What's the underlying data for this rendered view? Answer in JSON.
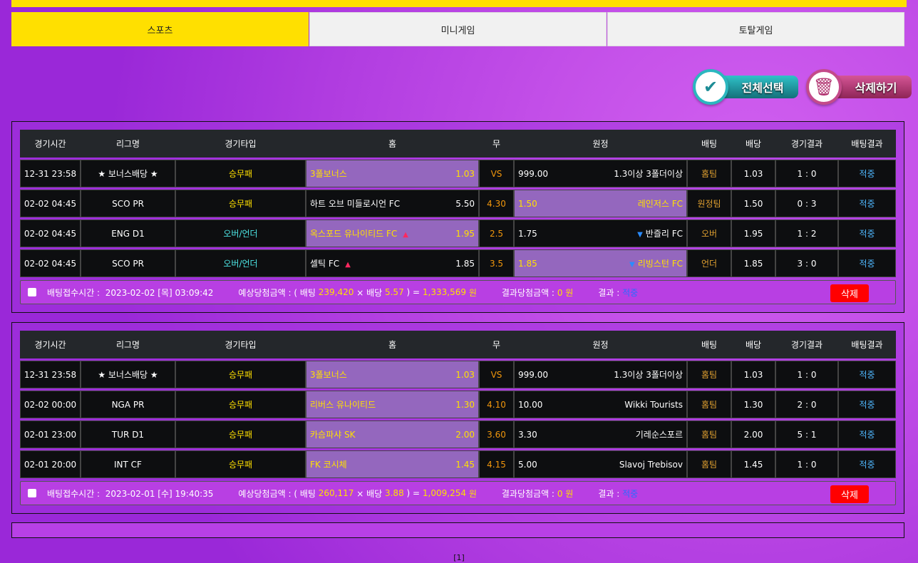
{
  "tabs": [
    {
      "label": "스포츠",
      "active": true
    },
    {
      "label": "미니게임",
      "active": false
    },
    {
      "label": "토탈게임",
      "active": false
    }
  ],
  "actions": {
    "select_all": "전체선택",
    "delete": "삭제하기"
  },
  "headers": [
    "경기시간",
    "리그명",
    "경기타입",
    "홈",
    "무",
    "원정",
    "배팅",
    "배당",
    "경기결과",
    "배팅결과"
  ],
  "footer_labels": {
    "time": "배팅접수시간 :",
    "expected": "예상당첨금액 : ( 배팅",
    "times": "× 배당",
    "eq": ") =",
    "won": "원",
    "result_amount": "결과당첨금액 :",
    "result": "결과 :",
    "delete": "삭제"
  },
  "bets": [
    {
      "rows": [
        {
          "time": "12-31 23:58",
          "league": "★ 보너스배당 ★",
          "type": "승무패",
          "home": "3폴보너스",
          "home_odds": "1.03",
          "draw": "VS",
          "away_odds": "999.00",
          "away": "1.3이상 3폴더이상",
          "selected": "home",
          "bet": "홈팀",
          "odds": "1.03",
          "score": "1 : 0",
          "result": "적중"
        },
        {
          "time": "02-02 04:45",
          "league": "SCO PR",
          "type": "승무패",
          "home": "하트 오브 미들로시언 FC",
          "home_odds": "5.50",
          "draw": "4.30",
          "away_odds": "1.50",
          "away": "레인저스 FC",
          "selected": "away",
          "bet": "원정팀",
          "odds": "1.50",
          "score": "0 : 3",
          "result": "적중"
        },
        {
          "time": "02-02 04:45",
          "league": "ENG D1",
          "type": "오버/언더",
          "home": "옥스포드 유나이티드 FC",
          "home_odds": "1.95",
          "draw": "2.5",
          "away_odds": "1.75",
          "away": "반즐리 FC",
          "selected": "home",
          "bet": "오버",
          "odds": "1.95",
          "score": "1 : 2",
          "result": "적중",
          "arrows": true
        },
        {
          "time": "02-02 04:45",
          "league": "SCO PR",
          "type": "오버/언더",
          "home": "셀틱 FC",
          "home_odds": "1.85",
          "draw": "3.5",
          "away_odds": "1.85",
          "away": "리빙스턴 FC",
          "selected": "away",
          "bet": "언더",
          "odds": "1.85",
          "score": "3 : 0",
          "result": "적중",
          "arrows": true
        }
      ],
      "received": "2023-02-02 [목] 03:09:42",
      "stake": "239,420",
      "total_odds": "5.57",
      "payout": "1,333,569",
      "result_amount": "0 원",
      "result": "적중"
    },
    {
      "rows": [
        {
          "time": "12-31 23:58",
          "league": "★ 보너스배당 ★",
          "type": "승무패",
          "home": "3폴보너스",
          "home_odds": "1.03",
          "draw": "VS",
          "away_odds": "999.00",
          "away": "1.3이상 3폴더이상",
          "selected": "home",
          "bet": "홈팀",
          "odds": "1.03",
          "score": "1 : 0",
          "result": "적중"
        },
        {
          "time": "02-02 00:00",
          "league": "NGA PR",
          "type": "승무패",
          "home": "리버스 유나이티드",
          "home_odds": "1.30",
          "draw": "4.10",
          "away_odds": "10.00",
          "away": "Wikki Tourists",
          "selected": "home",
          "bet": "홈팀",
          "odds": "1.30",
          "score": "2 : 0",
          "result": "적중"
        },
        {
          "time": "02-01 23:00",
          "league": "TUR D1",
          "type": "승무패",
          "home": "카슴파샤 SK",
          "home_odds": "2.00",
          "draw": "3.60",
          "away_odds": "3.30",
          "away": "기레순스포르",
          "selected": "home",
          "bet": "홈팀",
          "odds": "2.00",
          "score": "5 : 1",
          "result": "적중"
        },
        {
          "time": "02-01 20:00",
          "league": "INT CF",
          "type": "승무패",
          "home": "FK 코시체",
          "home_odds": "1.45",
          "draw": "4.15",
          "away_odds": "5.00",
          "away": "Slavoj Trebisov",
          "selected": "home",
          "bet": "홈팀",
          "odds": "1.45",
          "score": "1 : 0",
          "result": "적중"
        }
      ],
      "received": "2023-02-01 [수] 19:40:35",
      "stake": "260,117",
      "total_odds": "3.88",
      "payout": "1,009,254",
      "result_amount": "0 원",
      "result": "적중"
    }
  ],
  "pagination": "[1]"
}
